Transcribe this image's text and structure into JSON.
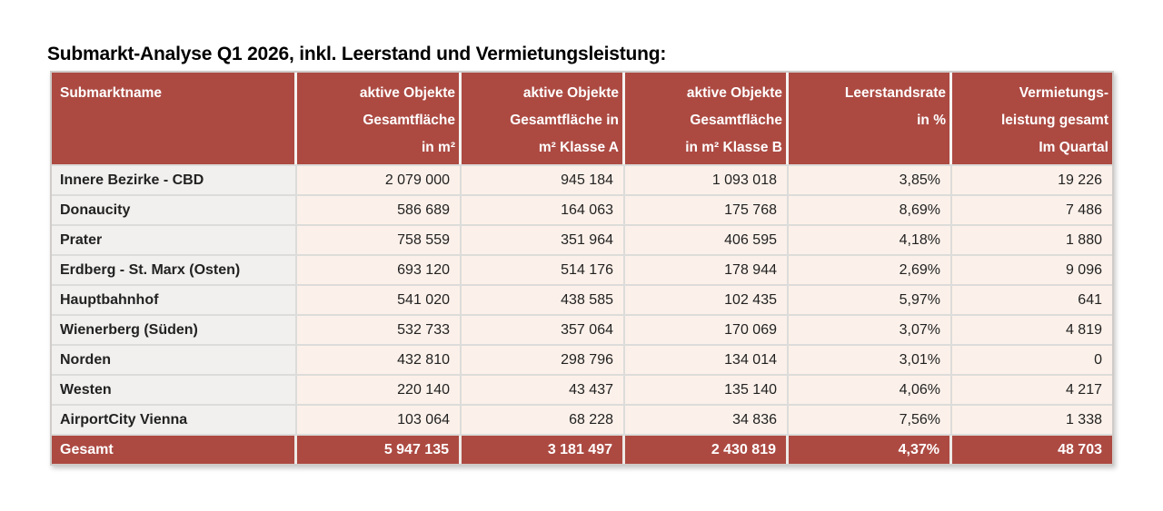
{
  "title": "Submarkt-Analyse Q1 2026, inkl. Leerstand und Vermietungsleistung:",
  "colors": {
    "header_bg": "#ac4a42",
    "name_column_bg": "#f1f0ee",
    "value_cell_bg": "#fcf1ea",
    "grid_line": "#dcdcda",
    "header_text": "#ffffff",
    "body_text": "#222222"
  },
  "table": {
    "columns": [
      {
        "id": "name",
        "line1": "Submarktname"
      },
      {
        "id": "total_area",
        "line1": "aktive Objekte",
        "line2": "Gesamtfläche",
        "line3": "in m²"
      },
      {
        "id": "class_a",
        "line1": "aktive Objekte",
        "line2": "Gesamtfläche in",
        "line3": "m² Klasse A"
      },
      {
        "id": "class_b",
        "line1": "aktive Objekte",
        "line2": "Gesamtfläche",
        "line3": "in m² Klasse B"
      },
      {
        "id": "vacancy",
        "line1": "Leerstandsrate",
        "line2": "in %"
      },
      {
        "id": "lettings",
        "line1": "Vermietungs-",
        "line2": "leistung gesamt",
        "line3": "Im Quartal"
      }
    ],
    "rows": [
      {
        "name": "Innere Bezirke - CBD",
        "total_area": "2 079 000",
        "class_a": "945 184",
        "class_b": "1 093 018",
        "vacancy": "3,85%",
        "lettings": "19 226"
      },
      {
        "name": "Donaucity",
        "total_area": "586 689",
        "class_a": "164 063",
        "class_b": "175 768",
        "vacancy": "8,69%",
        "lettings": "7 486"
      },
      {
        "name": "Prater",
        "total_area": "758 559",
        "class_a": "351 964",
        "class_b": "406 595",
        "vacancy": "4,18%",
        "lettings": "1 880"
      },
      {
        "name": "Erdberg - St. Marx (Osten)",
        "total_area": "693 120",
        "class_a": "514 176",
        "class_b": "178 944",
        "vacancy": "2,69%",
        "lettings": "9 096"
      },
      {
        "name": "Hauptbahnhof",
        "total_area": "541 020",
        "class_a": "438 585",
        "class_b": "102 435",
        "vacancy": "5,97%",
        "lettings": "641"
      },
      {
        "name": "Wienerberg (Süden)",
        "total_area": "532 733",
        "class_a": "357 064",
        "class_b": "170 069",
        "vacancy": "3,07%",
        "lettings": "4 819"
      },
      {
        "name": "Norden",
        "total_area": "432 810",
        "class_a": "298 796",
        "class_b": "134 014",
        "vacancy": "3,01%",
        "lettings": "0"
      },
      {
        "name": "Westen",
        "total_area": "220 140",
        "class_a": "43 437",
        "class_b": "135 140",
        "vacancy": "4,06%",
        "lettings": "4 217"
      },
      {
        "name": "AirportCity Vienna",
        "total_area": "103 064",
        "class_a": "68 228",
        "class_b": "34 836",
        "vacancy": "7,56%",
        "lettings": "1 338"
      }
    ],
    "total_row": {
      "name": "Gesamt",
      "total_area": "5 947 135",
      "class_a": "3 181 497",
      "class_b": "2 430 819",
      "vacancy": "4,37%",
      "lettings": "48 703"
    }
  }
}
